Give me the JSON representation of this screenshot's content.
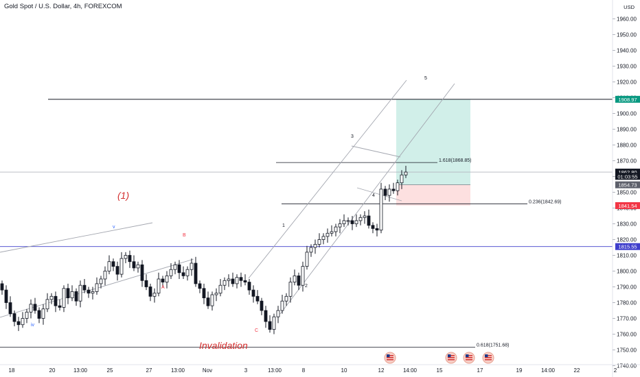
{
  "header": {
    "title": "Gold Spot / U.S. Dollar, 4h, FOREXCOM",
    "currency_label": "USD"
  },
  "chart_data": {
    "type": "candlestick",
    "title": "Gold Spot / U.S. Dollar, 4h, FOREXCOM",
    "ylim": [
      1733,
      1962
    ],
    "y_ticks": [
      "1960.00",
      "1950.00",
      "1940.00",
      "1930.00",
      "1920.00",
      "1910.00",
      "1900.00",
      "1890.00",
      "1880.00",
      "1870.00",
      "1860.00",
      "1850.00",
      "1840.00",
      "1830.00",
      "1820.00",
      "1810.00",
      "1800.00",
      "1790.00",
      "1780.00",
      "1770.00",
      "1760.00",
      "1750.00",
      "1740.00"
    ],
    "x_ticks": [
      "18",
      "20",
      "13:00",
      "25",
      "27",
      "13:00",
      "Nov",
      "3",
      "13:00",
      "8",
      "10",
      "12",
      "14:00",
      "15",
      "17",
      "19",
      "14:00",
      "22",
      "2"
    ],
    "closes": [
      1788,
      1780,
      1773,
      1768,
      1766,
      1770,
      1774,
      1779,
      1775,
      1770,
      1776,
      1782,
      1784,
      1778,
      1777,
      1789,
      1783,
      1787,
      1781,
      1791,
      1788,
      1786,
      1787,
      1792,
      1795,
      1800,
      1806,
      1803,
      1798,
      1808,
      1810,
      1806,
      1802,
      1804,
      1794,
      1790,
      1784,
      1786,
      1795,
      1793,
      1797,
      1801,
      1804,
      1799,
      1797,
      1801,
      1805,
      1792,
      1789,
      1783,
      1778,
      1785,
      1786,
      1791,
      1794,
      1795,
      1792,
      1796,
      1794,
      1793,
      1788,
      1784,
      1781,
      1775,
      1768,
      1763,
      1771,
      1775,
      1781,
      1784,
      1793,
      1797,
      1791,
      1803,
      1812,
      1815,
      1817,
      1820,
      1822,
      1824,
      1825,
      1828,
      1830,
      1832,
      1832,
      1830,
      1832,
      1834,
      1835,
      1829,
      1827,
      1826,
      1852,
      1848,
      1852,
      1851,
      1856,
      1861,
      1862.8
    ],
    "series": [
      {
        "name": "",
        "values": [
          1788,
          1780,
          1773,
          1768,
          1766,
          1770,
          1774,
          1779,
          1775,
          1770,
          1776,
          1782,
          1784,
          1778,
          1777,
          1789,
          1783,
          1787,
          1781,
          1791,
          1788,
          1786,
          1787,
          1792,
          1795,
          1800,
          1806,
          1803,
          1798,
          1808,
          1810,
          1806,
          1802,
          1804,
          1794,
          1790,
          1784,
          1786,
          1795,
          1793,
          1797,
          1801,
          1804,
          1799,
          1797,
          1801,
          1805,
          1792,
          1789,
          1783,
          1778,
          1785,
          1786,
          1791,
          1794,
          1795,
          1792,
          1796,
          1794,
          1793,
          1788,
          1784,
          1781,
          1775,
          1768,
          1763,
          1771,
          1775,
          1781,
          1784,
          1793,
          1797,
          1791,
          1803,
          1812,
          1815,
          1817,
          1820,
          1822,
          1824,
          1825,
          1828,
          1830,
          1832,
          1832,
          1830,
          1832,
          1834,
          1835,
          1829,
          1827,
          1826,
          1852,
          1848,
          1852,
          1851,
          1856,
          1861,
          1862.8
        ]
      }
    ],
    "price_labels": [
      {
        "text": "1908.97",
        "value": 1908.97,
        "color": "#089981"
      },
      {
        "text": "1862.80",
        "value": 1862.8,
        "color": "#131722"
      },
      {
        "text": "01:03:55",
        "value": 1860.1,
        "color": "#131722"
      },
      {
        "text": "1854.73",
        "value": 1854.73,
        "color": "#5d606b"
      },
      {
        "text": "1841.54",
        "value": 1841.54,
        "color": "#f23645"
      },
      {
        "text": "1815.55",
        "value": 1815.55,
        "color": "#3f3fcc"
      }
    ],
    "horizontal_levels": [
      {
        "value": 1908.97,
        "color": "#131722"
      },
      {
        "value": 1862.8,
        "color": "#b2b5be"
      },
      {
        "value": 1815.55,
        "color": "#3f3fcc"
      }
    ],
    "fib_levels": [
      {
        "text": "1.618(1868.85)",
        "value": 1868.85
      },
      {
        "text": "0.236(1842.69)",
        "value": 1842.69
      },
      {
        "text": "0.618(1751.68)",
        "value": 1751.68
      }
    ],
    "position": {
      "target": 1908.97,
      "entry": 1854.73,
      "stop": 1841.54
    },
    "wave_labels": {
      "degree": "(1)",
      "invalidation": "Invalidation",
      "black": [
        "1",
        "2",
        "3",
        "4",
        "5"
      ],
      "red": [
        "A",
        "B",
        "C"
      ],
      "blue": [
        "iv",
        "v"
      ]
    },
    "colors": {
      "up": "#131722",
      "down": "#131722",
      "target_zone": "#d1efe9",
      "stop_zone": "#fde0e0",
      "red_text": "#f23645",
      "blue_text": "#2962ff"
    },
    "grid": false,
    "event_icons": [
      "us-flag-icon",
      "us-flag-icon",
      "us-flag-icon",
      "us-flag-icon"
    ]
  }
}
